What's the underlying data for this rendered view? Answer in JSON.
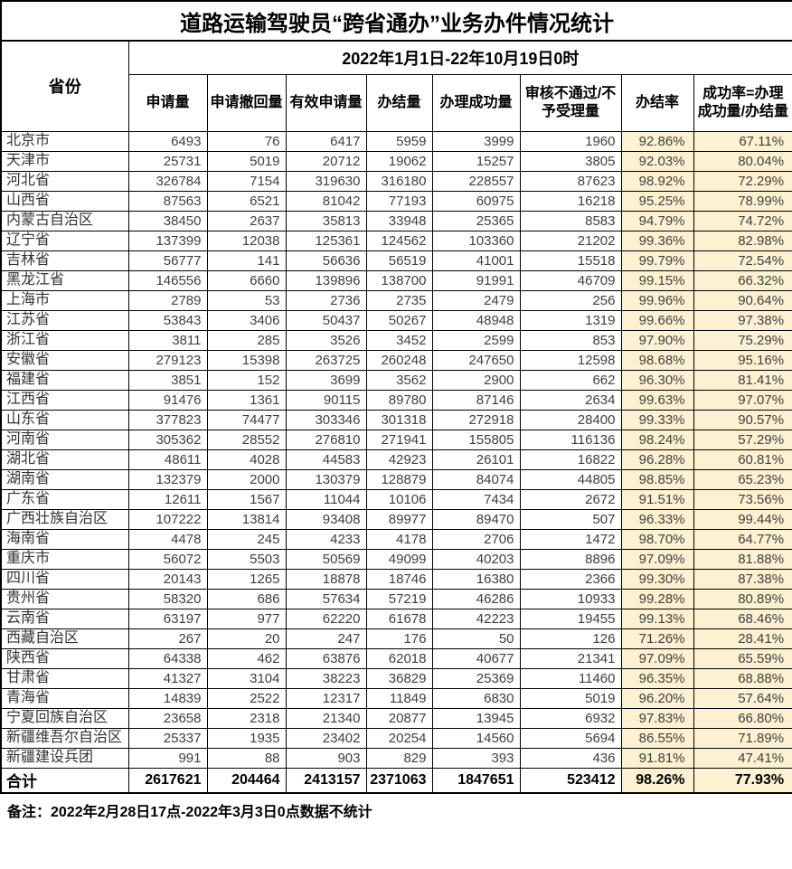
{
  "title": "道路运输驾驶员“跨省通办”业务办件情况统计",
  "period": "2022年1月1日-22年10月19日0时",
  "note": "备注：2022年2月28日17点-2022年3月3日0点数据不统计",
  "columns": {
    "province": "省份",
    "applications": "申请量",
    "withdrawn": "申请撤回量",
    "valid": "有效申请量",
    "completed": "办结量",
    "success": "办理成功量",
    "rejected": "审核不通过/不予受理量",
    "completion_rate": "办结率",
    "success_rate": "成功率=办理成功量/办结量"
  },
  "highlight_color": "#fcf1d0",
  "table": {
    "rows": [
      [
        "北京市",
        "6493",
        "76",
        "6417",
        "5959",
        "3999",
        "1960",
        "92.86%",
        "67.11%"
      ],
      [
        "天津市",
        "25731",
        "5019",
        "20712",
        "19062",
        "15257",
        "3805",
        "92.03%",
        "80.04%"
      ],
      [
        "河北省",
        "326784",
        "7154",
        "319630",
        "316180",
        "228557",
        "87623",
        "98.92%",
        "72.29%"
      ],
      [
        "山西省",
        "87563",
        "6521",
        "81042",
        "77193",
        "60975",
        "16218",
        "95.25%",
        "78.99%"
      ],
      [
        "内蒙古自治区",
        "38450",
        "2637",
        "35813",
        "33948",
        "25365",
        "8583",
        "94.79%",
        "74.72%"
      ],
      [
        "辽宁省",
        "137399",
        "12038",
        "125361",
        "124562",
        "103360",
        "21202",
        "99.36%",
        "82.98%"
      ],
      [
        "吉林省",
        "56777",
        "141",
        "56636",
        "56519",
        "41001",
        "15518",
        "99.79%",
        "72.54%"
      ],
      [
        "黑龙江省",
        "146556",
        "6660",
        "139896",
        "138700",
        "91991",
        "46709",
        "99.15%",
        "66.32%"
      ],
      [
        "上海市",
        "2789",
        "53",
        "2736",
        "2735",
        "2479",
        "256",
        "99.96%",
        "90.64%"
      ],
      [
        "江苏省",
        "53843",
        "3406",
        "50437",
        "50267",
        "48948",
        "1319",
        "99.66%",
        "97.38%"
      ],
      [
        "浙江省",
        "3811",
        "285",
        "3526",
        "3452",
        "2599",
        "853",
        "97.90%",
        "75.29%"
      ],
      [
        "安徽省",
        "279123",
        "15398",
        "263725",
        "260248",
        "247650",
        "12598",
        "98.68%",
        "95.16%"
      ],
      [
        "福建省",
        "3851",
        "152",
        "3699",
        "3562",
        "2900",
        "662",
        "96.30%",
        "81.41%"
      ],
      [
        "江西省",
        "91476",
        "1361",
        "90115",
        "89780",
        "87146",
        "2634",
        "99.63%",
        "97.07%"
      ],
      [
        "山东省",
        "377823",
        "74477",
        "303346",
        "301318",
        "272918",
        "28400",
        "99.33%",
        "90.57%"
      ],
      [
        "河南省",
        "305362",
        "28552",
        "276810",
        "271941",
        "155805",
        "116136",
        "98.24%",
        "57.29%"
      ],
      [
        "湖北省",
        "48611",
        "4028",
        "44583",
        "42923",
        "26101",
        "16822",
        "96.28%",
        "60.81%"
      ],
      [
        "湖南省",
        "132379",
        "2000",
        "130379",
        "128879",
        "84074",
        "44805",
        "98.85%",
        "65.23%"
      ],
      [
        "广东省",
        "12611",
        "1567",
        "11044",
        "10106",
        "7434",
        "2672",
        "91.51%",
        "73.56%"
      ],
      [
        "广西壮族自治区",
        "107222",
        "13814",
        "93408",
        "89977",
        "89470",
        "507",
        "96.33%",
        "99.44%"
      ],
      [
        "海南省",
        "4478",
        "245",
        "4233",
        "4178",
        "2706",
        "1472",
        "98.70%",
        "64.77%"
      ],
      [
        "重庆市",
        "56072",
        "5503",
        "50569",
        "49099",
        "40203",
        "8896",
        "97.09%",
        "81.88%"
      ],
      [
        "四川省",
        "20143",
        "1265",
        "18878",
        "18746",
        "16380",
        "2366",
        "99.30%",
        "87.38%"
      ],
      [
        "贵州省",
        "58320",
        "686",
        "57634",
        "57219",
        "46286",
        "10933",
        "99.28%",
        "80.89%"
      ],
      [
        "云南省",
        "63197",
        "977",
        "62220",
        "61678",
        "42223",
        "19455",
        "99.13%",
        "68.46%"
      ],
      [
        "西藏自治区",
        "267",
        "20",
        "247",
        "176",
        "50",
        "126",
        "71.26%",
        "28.41%"
      ],
      [
        "陕西省",
        "64338",
        "462",
        "63876",
        "62018",
        "40677",
        "21341",
        "97.09%",
        "65.59%"
      ],
      [
        "甘肃省",
        "41327",
        "3104",
        "38223",
        "36829",
        "25369",
        "11460",
        "96.35%",
        "68.88%"
      ],
      [
        "青海省",
        "14839",
        "2522",
        "12317",
        "11849",
        "6830",
        "5019",
        "96.20%",
        "57.64%"
      ],
      [
        "宁夏回族自治区",
        "23658",
        "2318",
        "21340",
        "20877",
        "13945",
        "6932",
        "97.83%",
        "66.80%"
      ],
      [
        "新疆维吾尔自治区",
        "25337",
        "1935",
        "23402",
        "20254",
        "14560",
        "5694",
        "86.55%",
        "71.89%"
      ],
      [
        "新疆建设兵团",
        "991",
        "88",
        "903",
        "829",
        "393",
        "436",
        "91.81%",
        "47.41%"
      ]
    ],
    "total": {
      "label": "合计",
      "values": [
        "2617621",
        "204464",
        "2413157",
        "2371063",
        "1847651",
        "523412",
        "98.26%",
        "77.93%"
      ]
    }
  }
}
